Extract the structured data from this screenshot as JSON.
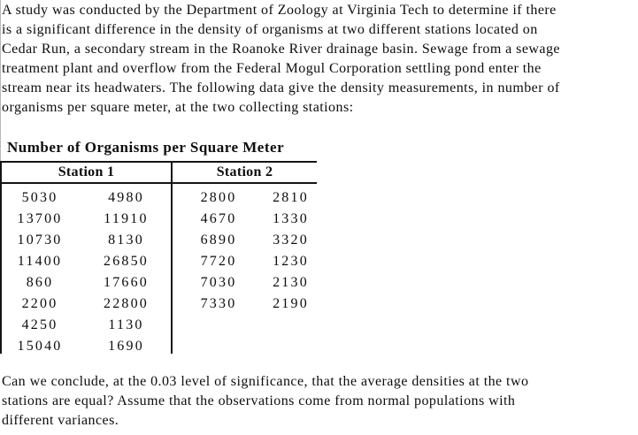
{
  "colors": {
    "background": "#ffffff",
    "text": "#0d0d0d",
    "table_rules": "#151515"
  },
  "intro": {
    "lines": [
      "A study was conducted by the Department of Zoology at Virginia Tech to determine if there",
      "is a significant difference in the density of organisms at two different stations located on",
      "Cedar Run, a secondary stream in the Roanoke River drainage basin. Sewage from a sewage",
      "treatment plant and overflow from the Federal Mogul Corporation settling pond enter the",
      "stream near its headwaters. The following data give the density measurements, in number of",
      "organisms per square meter, at the two collecting stations:"
    ]
  },
  "table": {
    "title": "Number of Organisms per Square Meter",
    "columns": [
      "Station 1",
      "Station 2"
    ],
    "rows": [
      [
        "5030",
        "4980",
        "2800",
        "2810"
      ],
      [
        "13700",
        "11910",
        "4670",
        "1330"
      ],
      [
        "10730",
        "8130",
        "6890",
        "3320"
      ],
      [
        "11400",
        "26850",
        "7720",
        "1230"
      ],
      [
        "860",
        "17660",
        "7030",
        "2130"
      ],
      [
        "2200",
        "22800",
        "7330",
        "2190"
      ],
      [
        "4250",
        "1130",
        "",
        ""
      ],
      [
        "15040",
        "1690",
        "",
        ""
      ]
    ]
  },
  "question": {
    "lines": [
      "Can we conclude, at the 0.03 level of significance, that the average densities at the two",
      "stations are equal? Assume that the observations come from normal populations with",
      "different variances."
    ]
  }
}
